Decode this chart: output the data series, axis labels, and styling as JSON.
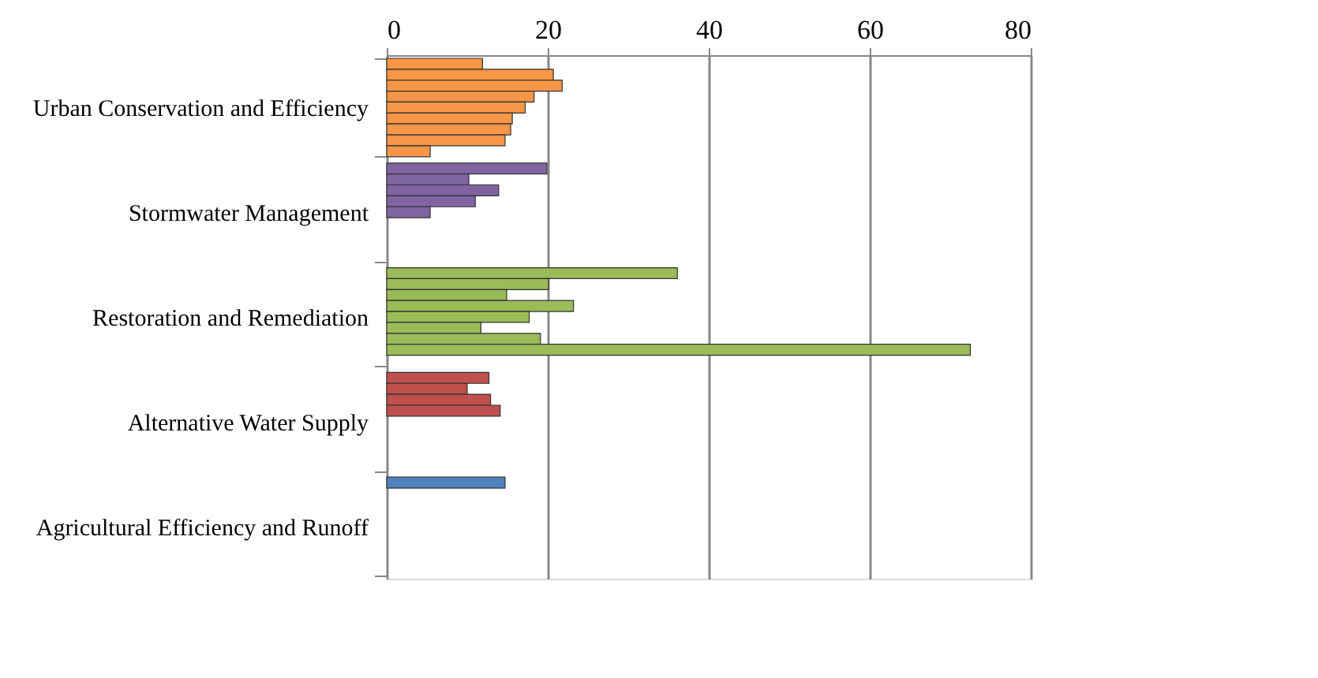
{
  "chart_data": {
    "type": "bar",
    "orientation": "horizontal",
    "categories": [
      "Urban Conservation and Efficiency",
      "Stormwater Management",
      "Restoration and Remediation",
      "Alternative Water Supply",
      "Agricultural Efficiency and Runoff"
    ],
    "series": [
      {
        "colors": [
          "#f79646",
          "#8064a2",
          "#9bbb59",
          "#c0504d",
          "#4f81bd"
        ],
        "values": [
          11.9,
          19.9,
          36.1,
          12.7,
          14.7
        ]
      },
      {
        "colors": [
          "#f79646",
          "#8064a2",
          "#9bbb59",
          "#c0504d",
          "#4f81bd"
        ],
        "values": [
          20.7,
          10.2,
          20.1,
          10.0,
          null
        ]
      },
      {
        "colors": [
          "#f79646",
          "#8064a2",
          "#9bbb59",
          "#c0504d",
          "#4f81bd"
        ],
        "values": [
          21.8,
          13.9,
          14.9,
          12.9,
          null
        ]
      },
      {
        "colors": [
          "#f79646",
          "#8064a2",
          "#9bbb59",
          "#c0504d",
          "#4f81bd"
        ],
        "values": [
          18.3,
          11.0,
          23.2,
          14.1,
          null
        ]
      },
      {
        "colors": [
          "#f79646",
          "#8064a2",
          "#9bbb59",
          "#c0504d",
          "#4f81bd"
        ],
        "values": [
          17.2,
          5.4,
          17.7,
          null,
          null
        ]
      },
      {
        "colors": [
          "#f79646",
          "#8064a2",
          "#9bbb59",
          "#c0504d",
          "#4f81bd"
        ],
        "values": [
          15.6,
          null,
          11.7,
          null,
          null
        ]
      },
      {
        "colors": [
          "#f79646",
          "#8064a2",
          "#9bbb59",
          "#c0504d",
          "#4f81bd"
        ],
        "values": [
          15.4,
          null,
          19.1,
          null,
          null
        ]
      },
      {
        "colors": [
          "#f79646",
          "#8064a2",
          "#9bbb59",
          "#c0504d",
          "#4f81bd"
        ],
        "values": [
          14.7,
          null,
          72.5,
          null,
          null
        ]
      },
      {
        "colors": [
          "#f79646",
          "#8064a2",
          "#9bbb59",
          "#c0504d",
          "#4f81bd"
        ],
        "values": [
          5.4,
          null,
          null,
          null,
          null
        ]
      }
    ],
    "xlim": [
      0,
      80
    ],
    "xticks": [
      0,
      20,
      40,
      60,
      80
    ],
    "grid": "x"
  }
}
